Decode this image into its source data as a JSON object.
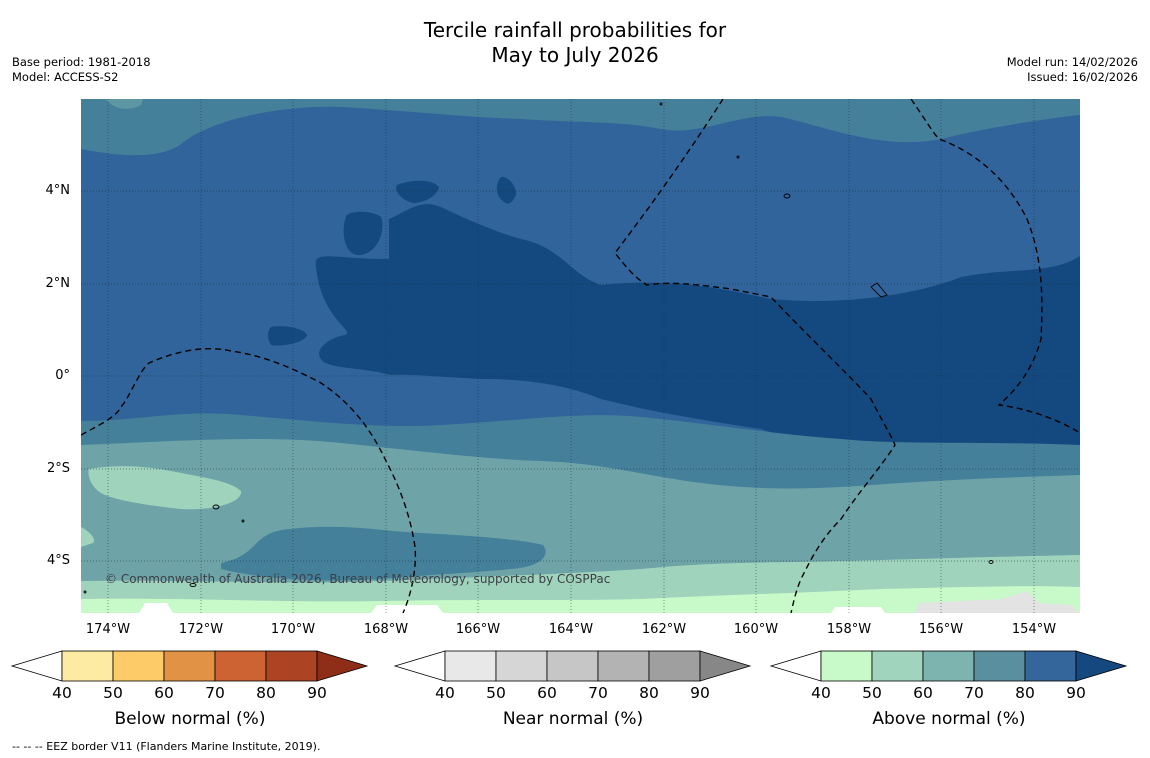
{
  "title": {
    "line1": "Tercile rainfall probabilities for",
    "line2": "May to July 2026"
  },
  "meta_left": {
    "base_period": "Base period: 1981-2018",
    "model": "Model: ACCESS-S2"
  },
  "meta_right": {
    "model_run": "Model run: 14/02/2026",
    "issued": "Issued: 16/02/2026"
  },
  "map": {
    "lat_labels": [
      "4°N",
      "2°N",
      "0°",
      "2°S",
      "4°S"
    ],
    "lon_labels": [
      "174°W",
      "172°W",
      "170°W",
      "168°W",
      "166°W",
      "164°W",
      "162°W",
      "160°W",
      "158°W",
      "156°W",
      "154°W"
    ],
    "copyright": "© Commonwealth of Australia 2026, Bureau of Meteorology, supported by COSPPac"
  },
  "colorbars": [
    {
      "name": "below",
      "title": "Below normal (%)",
      "ticks": [
        "40",
        "50",
        "60",
        "70",
        "80",
        "90"
      ],
      "colors": [
        "#fdeba3",
        "#fdcb67",
        "#e19245",
        "#cd6232",
        "#ac4322",
        "#8e2e18"
      ]
    },
    {
      "name": "near",
      "title": "Near normal (%)",
      "ticks": [
        "40",
        "50",
        "60",
        "70",
        "80",
        "90"
      ],
      "colors": [
        "#e8e8e8",
        "#d6d6d6",
        "#c6c6c6",
        "#b3b3b3",
        "#9f9f9f",
        "#878787"
      ]
    },
    {
      "name": "above",
      "title": "Above normal (%)",
      "ticks": [
        "40",
        "50",
        "60",
        "70",
        "80",
        "90"
      ],
      "colors": [
        "#c8f9c9",
        "#a0d4bd",
        "#7eb4af",
        "#5a8fa0",
        "#34659b",
        "#15487f"
      ]
    }
  ],
  "footnote": "--  --  -- EEZ border V11 (Flanders Marine Institute, 2019)."
}
